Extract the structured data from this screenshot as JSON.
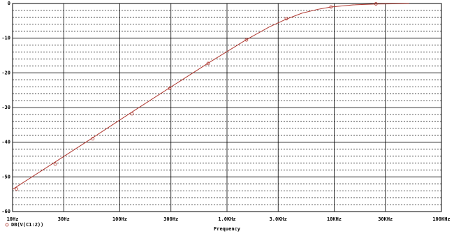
{
  "chart_data": {
    "type": "line",
    "xlabel": "Frequency",
    "xscale": "log",
    "xlim": [
      10,
      100000
    ],
    "ylim": [
      -60,
      0
    ],
    "xticks": [
      {
        "value": 10,
        "label": "10Hz"
      },
      {
        "value": 30,
        "label": "30Hz"
      },
      {
        "value": 100,
        "label": "100Hz"
      },
      {
        "value": 300,
        "label": "300Hz"
      },
      {
        "value": 1000,
        "label": "1.0KHz"
      },
      {
        "value": 3000,
        "label": "3.0KHz"
      },
      {
        "value": 10000,
        "label": "10KHz"
      },
      {
        "value": 30000,
        "label": "30KHz"
      },
      {
        "value": 100000,
        "label": "100KHz"
      }
    ],
    "yticks": [
      0,
      -10,
      -20,
      -30,
      -40,
      -50,
      -60
    ],
    "y_minor_ticks": [
      -2,
      -4,
      -6,
      -8,
      -12,
      -14,
      -16,
      -18,
      -22,
      -24,
      -26,
      -28,
      -32,
      -34,
      -36,
      -38,
      -42,
      -44,
      -46,
      -48,
      -52,
      -54,
      -56,
      -58
    ],
    "grid": true,
    "series": [
      {
        "name": "DB(V(C1:2))",
        "color": "#b03a32",
        "x": [
          10,
          25,
          56,
          130,
          292,
          667,
          1520,
          2500,
          3580,
          5000,
          7000,
          9340,
          15000,
          24500,
          50000
        ],
        "values": [
          -53.6,
          -45.7,
          -38.7,
          -31.3,
          -24.3,
          -17.2,
          -10.4,
          -6.7,
          -4.5,
          -2.8,
          -1.7,
          -1.0,
          -0.4,
          -0.16,
          -0.04
        ],
        "markers": {
          "x": [
            10.9,
            25,
            56,
            130,
            292,
            667,
            1520,
            3580,
            9340,
            24500
          ],
          "values": [
            -53.5,
            -46.3,
            -39,
            -31.8,
            -24.5,
            -17.3,
            -10.5,
            -4.4,
            -1,
            -0.1
          ]
        }
      }
    ]
  }
}
